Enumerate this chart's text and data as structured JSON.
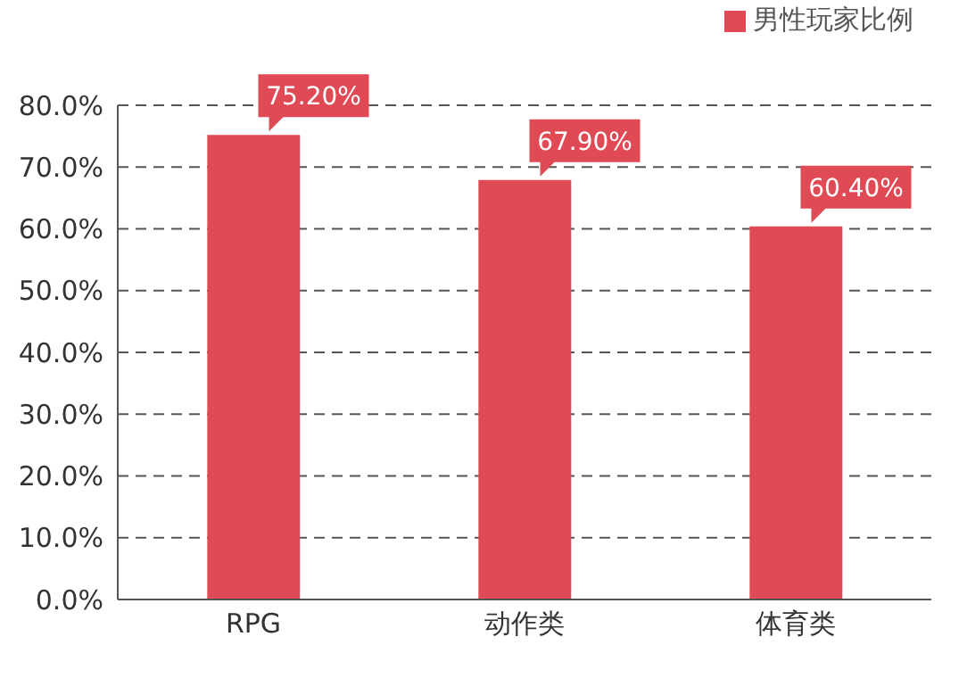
{
  "chart_data": {
    "type": "bar",
    "categories": [
      "RPG",
      "动作类",
      "体育类"
    ],
    "series": [
      {
        "name": "男性玩家比例",
        "color": "#e04a55",
        "values": [
          75.2,
          67.9,
          60.4
        ],
        "value_labels": [
          "75.20%",
          "67.90%",
          "60.40%"
        ]
      }
    ],
    "ylim": [
      0,
      80
    ],
    "yticks": [
      {
        "value": 0,
        "label": "0.0%"
      },
      {
        "value": 10,
        "label": "10.0%"
      },
      {
        "value": 20,
        "label": "20.0%"
      },
      {
        "value": 30,
        "label": "30.0%"
      },
      {
        "value": 40,
        "label": "40.0%"
      },
      {
        "value": 50,
        "label": "50.0%"
      },
      {
        "value": 60,
        "label": "60.0%"
      },
      {
        "value": 70,
        "label": "70.0%"
      },
      {
        "value": 80,
        "label": "80.0%"
      }
    ],
    "grid": "y",
    "legend": "top right"
  }
}
